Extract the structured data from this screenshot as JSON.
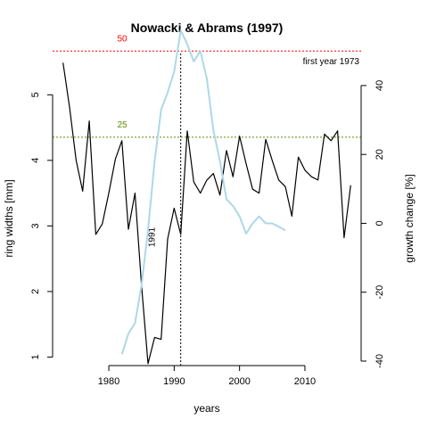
{
  "chart_data": {
    "type": "line",
    "title": "Nowacki & Abrams (1997)",
    "xlabel": "years",
    "ylabel_left": "ring widths [mm]",
    "ylabel_right": "growth change [%]",
    "note": "first year 1973",
    "x_ticks": [
      1980,
      1990,
      2000,
      2010
    ],
    "y_left_ticks": [
      1,
      2,
      3,
      4,
      5
    ],
    "y_right_ticks": [
      -40,
      -20,
      0,
      20,
      40
    ],
    "x_range": [
      1971.4,
      2018.6
    ],
    "y_left_range": [
      0.87,
      5.63
    ],
    "y_right_range": [
      -41.3,
      49.3
    ],
    "series": [
      {
        "axis": "left",
        "color": "#000000",
        "x": [
          1973,
          1974,
          1975,
          1976,
          1977,
          1978,
          1979,
          1980,
          1981,
          1982,
          1983,
          1984,
          1985,
          1986,
          1987,
          1988,
          1989,
          1990,
          1991,
          1992,
          1993,
          1994,
          1995,
          1996,
          1997,
          1998,
          1999,
          2000,
          2001,
          2002,
          2003,
          2004,
          2005,
          2006,
          2007,
          2008,
          2009,
          2010,
          2011,
          2012,
          2013,
          2014,
          2015,
          2016,
          2017
        ],
        "values": [
          5.49,
          4.8,
          4.0,
          3.53,
          4.6,
          2.87,
          3.03,
          3.5,
          4.02,
          4.3,
          2.95,
          3.5,
          2.1,
          0.9,
          1.3,
          1.27,
          2.8,
          3.27,
          2.87,
          4.45,
          3.67,
          3.5,
          3.7,
          3.8,
          3.47,
          4.15,
          3.75,
          4.37,
          3.95,
          3.56,
          3.5,
          4.32,
          4.0,
          3.7,
          3.6,
          3.15,
          4.05,
          3.85,
          3.75,
          3.7,
          4.4,
          4.3,
          4.45,
          2.82,
          3.62
        ]
      },
      {
        "axis": "right",
        "color": "#add8e6",
        "x": [
          1982,
          1983,
          1984,
          1985,
          1986,
          1987,
          1988,
          1989,
          1990,
          1991,
          1992,
          1993,
          1994,
          1995,
          1996,
          1997,
          1998,
          1999,
          2000,
          2001,
          2002,
          2003,
          2004,
          2005,
          2006,
          2007
        ],
        "values": [
          -38,
          -32,
          -29,
          -18,
          -2,
          18,
          33,
          38,
          44,
          56,
          52,
          47,
          50,
          42,
          27,
          18,
          7,
          5,
          2,
          -3,
          0,
          2,
          0,
          0,
          -1,
          -2
        ]
      }
    ],
    "reference_lines": [
      {
        "kind": "horizontal",
        "axis": "right",
        "value": 50,
        "label": "50",
        "color": "#ff0000",
        "style": "dotted"
      },
      {
        "kind": "horizontal",
        "axis": "right",
        "value": 25,
        "label": "25",
        "color": "#5b8c00",
        "style": "dotted"
      },
      {
        "kind": "vertical",
        "x": 1991,
        "label": "1991",
        "color": "#000000",
        "style": "dotted"
      }
    ],
    "grid": false,
    "legend": "none"
  }
}
